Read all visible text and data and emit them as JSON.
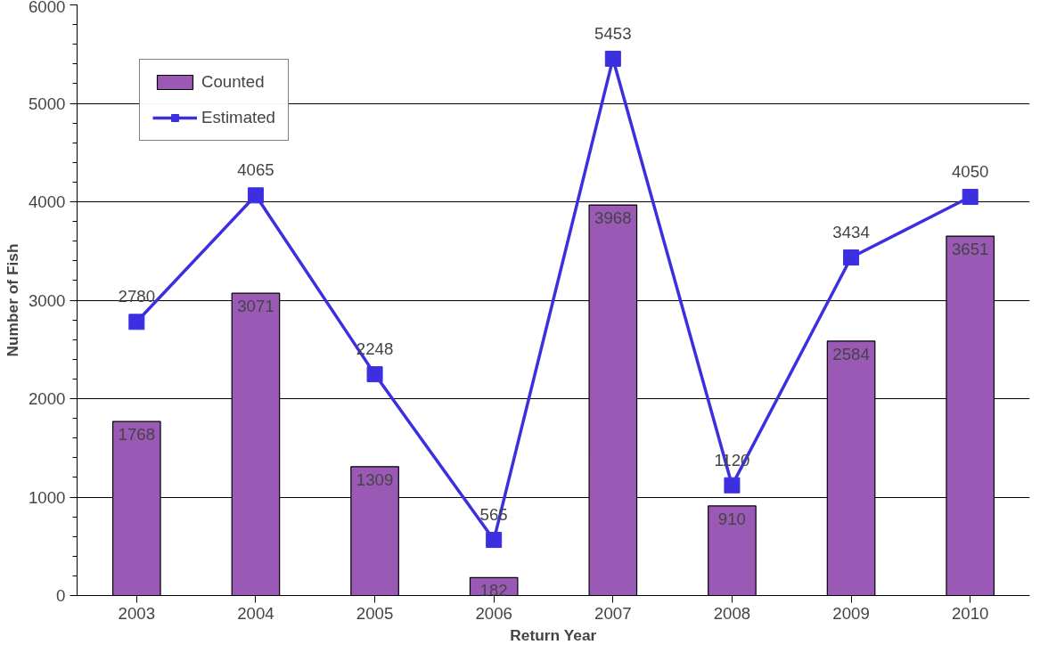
{
  "chart_data": {
    "type": "bar",
    "xlabel": "Return Year",
    "ylabel": "Number of Fish",
    "categories": [
      "2003",
      "2004",
      "2005",
      "2006",
      "2007",
      "2008",
      "2009",
      "2010"
    ],
    "series": [
      {
        "name": "Counted",
        "color": "#9b59b6",
        "values": [
          1768,
          3071,
          1309,
          182,
          3968,
          910,
          2584,
          3651
        ]
      },
      {
        "name": "Estimated",
        "type": "line",
        "color": "#3b2fe0",
        "marker": "square",
        "values": [
          2780,
          4065,
          2248,
          565,
          5453,
          1120,
          3434,
          4050
        ]
      }
    ],
    "ylim": [
      0,
      6000
    ],
    "yticks": [
      0,
      1000,
      2000,
      3000,
      4000,
      5000,
      6000
    ],
    "grid": "y",
    "legend": "top left",
    "data_labels": true
  }
}
